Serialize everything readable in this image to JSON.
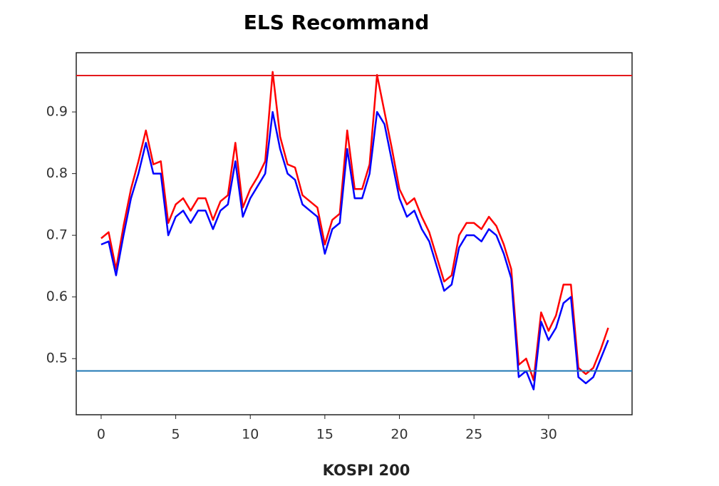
{
  "chart_data": {
    "type": "line",
    "title": "ELS Recommand",
    "xlabel": "KOSPI 200",
    "x": [
      0,
      0.5,
      1,
      1.5,
      2,
      2.5,
      3,
      3.5,
      4,
      4.5,
      5,
      5.5,
      6,
      6.5,
      7,
      7.5,
      8,
      8.5,
      9,
      9.5,
      10,
      10.5,
      11,
      11.5,
      12,
      12.5,
      13,
      13.5,
      14,
      14.5,
      15,
      15.5,
      16,
      16.5,
      17,
      17.5,
      18,
      18.5,
      19,
      19.5,
      20,
      20.5,
      21,
      21.5,
      22,
      22.5,
      23,
      23.5,
      24,
      24.5,
      25,
      25.5,
      26,
      26.5,
      27,
      27.5,
      28,
      28.5,
      29,
      29.5,
      30,
      30.5,
      31,
      31.5,
      32,
      32.5,
      33,
      33.5,
      34
    ],
    "series": [
      {
        "color": "#ff0000",
        "values": [
          0.695,
          0.705,
          0.645,
          0.715,
          0.775,
          0.82,
          0.87,
          0.815,
          0.82,
          0.72,
          0.75,
          0.76,
          0.74,
          0.76,
          0.76,
          0.725,
          0.755,
          0.765,
          0.85,
          0.745,
          0.775,
          0.795,
          0.82,
          0.965,
          0.86,
          0.815,
          0.81,
          0.765,
          0.755,
          0.745,
          0.685,
          0.725,
          0.735,
          0.87,
          0.775,
          0.775,
          0.815,
          0.96,
          0.9,
          0.84,
          0.775,
          0.75,
          0.76,
          0.73,
          0.705,
          0.665,
          0.625,
          0.635,
          0.7,
          0.72,
          0.72,
          0.71,
          0.73,
          0.715,
          0.685,
          0.645,
          0.49,
          0.5,
          0.465,
          0.575,
          0.545,
          0.57,
          0.62,
          0.62,
          0.485,
          0.475,
          0.485,
          0.515,
          0.55
        ]
      },
      {
        "color": "#0000ff",
        "values": [
          0.685,
          0.69,
          0.635,
          0.7,
          0.76,
          0.8,
          0.85,
          0.8,
          0.8,
          0.7,
          0.73,
          0.74,
          0.72,
          0.74,
          0.74,
          0.71,
          0.74,
          0.75,
          0.82,
          0.73,
          0.76,
          0.78,
          0.8,
          0.9,
          0.84,
          0.8,
          0.79,
          0.75,
          0.74,
          0.73,
          0.67,
          0.71,
          0.72,
          0.84,
          0.76,
          0.76,
          0.8,
          0.9,
          0.88,
          0.82,
          0.76,
          0.73,
          0.74,
          0.71,
          0.69,
          0.65,
          0.61,
          0.62,
          0.68,
          0.7,
          0.7,
          0.69,
          0.71,
          0.7,
          0.67,
          0.63,
          0.47,
          0.48,
          0.45,
          0.56,
          0.53,
          0.55,
          0.59,
          0.6,
          0.47,
          0.46,
          0.47,
          0.5,
          0.53
        ]
      }
    ],
    "reference_lines": [
      {
        "value": 0.959,
        "color": "#e41a1c"
      },
      {
        "value": 0.48,
        "color": "#1f77b4"
      }
    ],
    "xlim": [
      -1.67,
      35.6
    ],
    "ylim": [
      0.409,
      0.996
    ],
    "xticks": [
      0,
      5,
      10,
      15,
      20,
      25,
      30
    ],
    "yticks": [
      0.5,
      0.6,
      0.7,
      0.8,
      0.9
    ],
    "grid": false
  }
}
